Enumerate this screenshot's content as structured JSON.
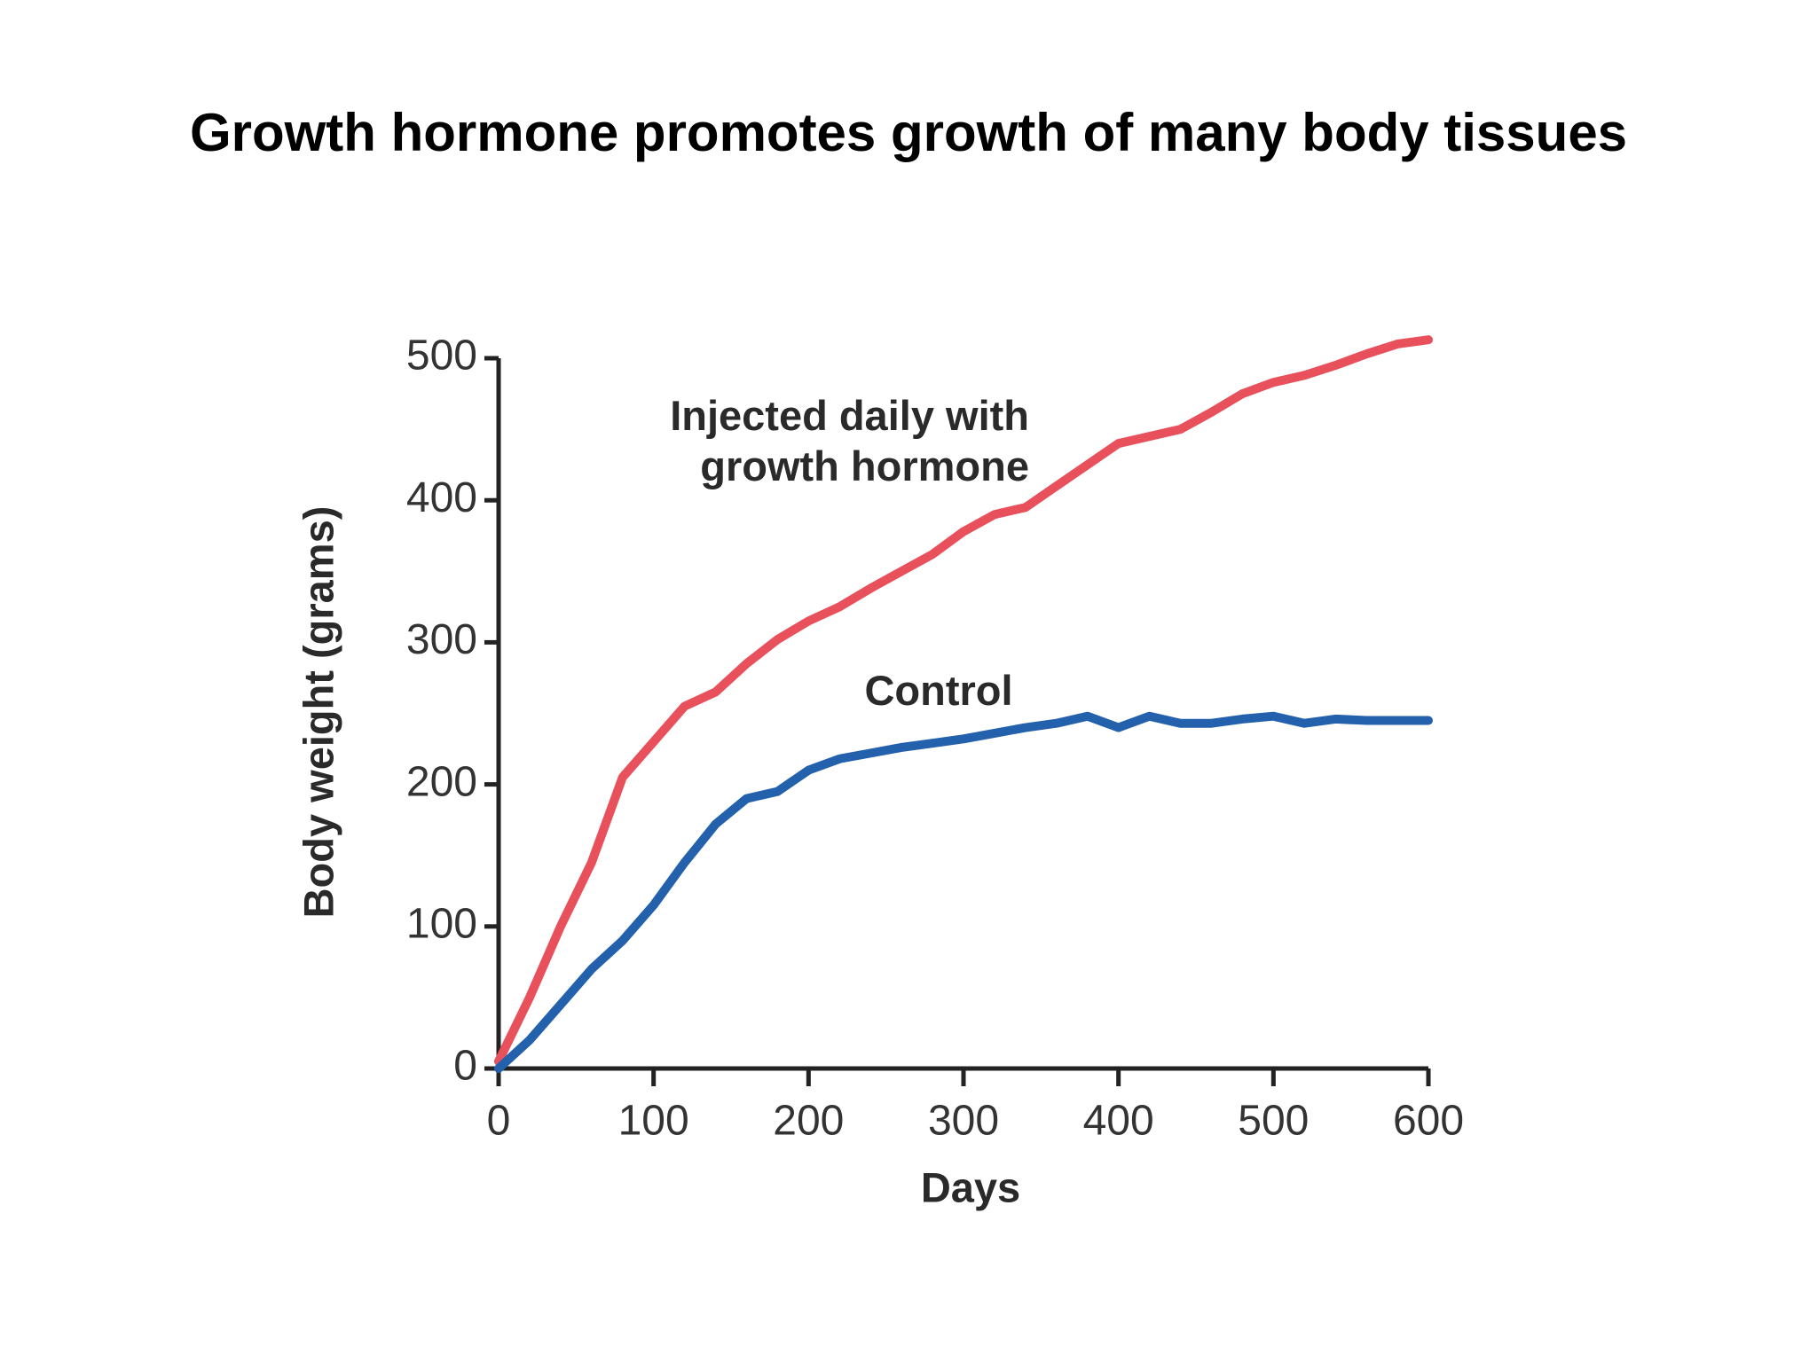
{
  "chart_data": {
    "type": "line",
    "title": "Growth hormone promotes growth of many body tissues",
    "x_label": "Days",
    "y_label": "Body weight (grams)",
    "x": [
      0,
      20,
      40,
      60,
      80,
      100,
      120,
      140,
      160,
      180,
      200,
      220,
      240,
      260,
      280,
      300,
      320,
      340,
      360,
      380,
      400,
      420,
      440,
      460,
      480,
      500,
      520,
      540,
      560,
      580,
      600
    ],
    "series": [
      {
        "name": "Injected daily with growth hormone",
        "color": "#e8505b",
        "values": [
          5,
          50,
          100,
          145,
          205,
          230,
          255,
          265,
          285,
          302,
          315,
          325,
          338,
          350,
          362,
          378,
          390,
          395,
          410,
          425,
          440,
          445,
          450,
          462,
          475,
          483,
          488,
          495,
          503,
          510,
          513
        ]
      },
      {
        "name": "Control",
        "color": "#2461ad",
        "values": [
          0,
          20,
          45,
          70,
          90,
          115,
          145,
          172,
          190,
          195,
          210,
          218,
          222,
          226,
          229,
          232,
          236,
          240,
          243,
          248,
          240,
          248,
          243,
          243,
          246,
          248,
          243,
          246,
          245,
          245,
          245
        ]
      }
    ],
    "xlim": [
      0,
      600
    ],
    "xticks": [
      0,
      100,
      200,
      300,
      400,
      500,
      600
    ],
    "ylim": [
      0,
      500
    ],
    "yticks": [
      0,
      100,
      200,
      300,
      400,
      500
    ],
    "grid": false
  }
}
